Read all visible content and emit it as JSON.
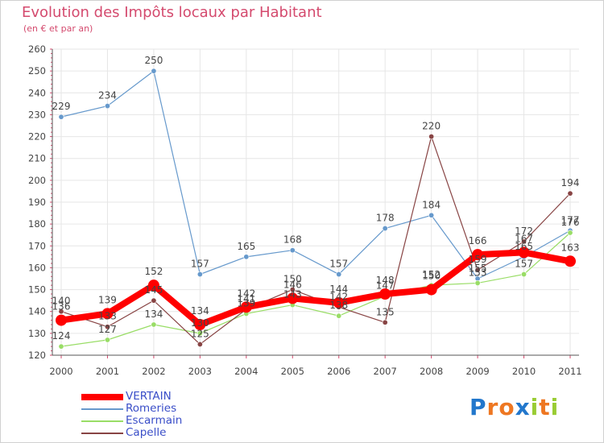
{
  "chart_data": {
    "type": "line",
    "title": "Evolution des Impôts locaux par Habitant",
    "subtitle": "(en € et par an)",
    "xlabel": "",
    "ylabel": "",
    "categories": [
      "2000",
      "2001",
      "2002",
      "2003",
      "2004",
      "2005",
      "2006",
      "2007",
      "2008",
      "2009",
      "2010",
      "2011"
    ],
    "ylim": [
      120,
      260
    ],
    "yticks": [
      "120",
      "130",
      "140",
      "150",
      "160",
      "170",
      "180",
      "190",
      "200",
      "210",
      "220",
      "230",
      "240",
      "250",
      "260"
    ],
    "grid": true,
    "legend_position": "bottom-left",
    "series": [
      {
        "name": "VERTAIN",
        "color": "#ff0000",
        "style": "thick",
        "values": [
          136,
          139,
          152,
          134,
          142,
          146,
          144,
          148,
          150,
          166,
          167,
          163
        ],
        "labels": [
          "136",
          "139",
          "152",
          "134",
          "142",
          "146",
          "144",
          "148",
          "150",
          "166",
          "167",
          "163"
        ]
      },
      {
        "name": "Romeries",
        "color": "#6699cc",
        "style": "thin",
        "values": [
          229,
          234,
          250,
          157,
          165,
          168,
          157,
          178,
          184,
          155,
          165,
          177
        ],
        "labels": [
          "229",
          "234",
          "250",
          "157",
          "165",
          "168",
          "157",
          "178",
          "184",
          "155",
          "165",
          "177"
        ]
      },
      {
        "name": "Escarmain",
        "color": "#99dd66",
        "style": "thin",
        "values": [
          124,
          127,
          134,
          130,
          139,
          143,
          138,
          147,
          152,
          153,
          157,
          176
        ],
        "labels": [
          "124",
          "127",
          "134",
          "130",
          "139",
          "143",
          "138",
          "147",
          "152",
          "153",
          "157",
          "176"
        ]
      },
      {
        "name": "Capelle",
        "color": "#884444",
        "style": "thin",
        "values": [
          140,
          133,
          145,
          125,
          141,
          150,
          142,
          135,
          220,
          159,
          172,
          194
        ],
        "labels": [
          "140",
          "133",
          "145",
          "125",
          "141",
          "150",
          "142",
          "135",
          "220",
          "159",
          "172",
          "194"
        ]
      }
    ]
  },
  "logo": {
    "letters": [
      "P",
      "r",
      "o",
      "x",
      "i",
      "t",
      "i"
    ],
    "colors": [
      "#2277cc",
      "#ee7722",
      "#ee7722",
      "#2277cc",
      "#99cc33",
      "#ee7722",
      "#99cc33"
    ]
  }
}
